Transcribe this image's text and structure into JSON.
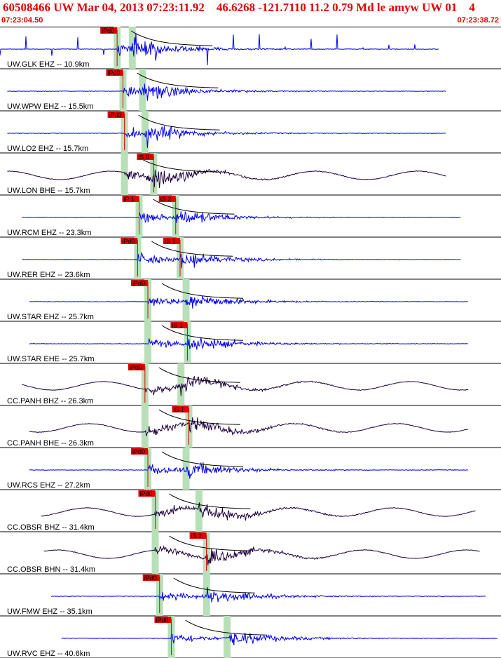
{
  "header": {
    "title": "60508466 UW Mar 04, 2013 07:23:11.92    46.6268 -121.7110 11.2 0.79 Md le amyw UW 01    4",
    "time_start": "07:23:04.50",
    "time_end": "07:23:38.72"
  },
  "colors": {
    "header_text": "#e00000",
    "ehz_trace": "#0000ee",
    "broadband_trace": "#200040",
    "pick_box": "#e00000",
    "pick_window": "#b8e0b8",
    "coda_curve": "#000000"
  },
  "chart_data": {
    "type": "line",
    "title": "60508466 UW Mar 04, 2013 07:23:11.92    46.6268 -121.7110 11.2 0.79 Md le amyw UW 01    4",
    "x_start": "07:23:04.50",
    "x_end": "07:23:38.72",
    "x_range_seconds": [
      0,
      34.22
    ],
    "grid": false,
    "legend": "none",
    "origin_time_offset": 7.42,
    "traces": [
      {
        "label": "UW.GLK EHZ -- 10.9km",
        "channel": "EHZ",
        "distance_km": 10.9,
        "p_pick": {
          "label": "iPd0",
          "t": 8.0
        },
        "s_pick": null,
        "data_start": 0.0,
        "data_end": 30.0
      },
      {
        "label": "UW.WPW EHZ -- 15.5km",
        "channel": "EHZ",
        "distance_km": 15.5,
        "p_pick": {
          "label": "iPd0",
          "t": 8.4
        },
        "s_pick": null,
        "data_start": 0.5,
        "data_end": 30.5
      },
      {
        "label": "UW.LO2 EHZ -- 15.7km",
        "channel": "EHZ",
        "distance_km": 15.7,
        "p_pick": {
          "label": "iPd0",
          "t": 8.5
        },
        "s_pick": null,
        "data_start": 0.5,
        "data_end": 30.5
      },
      {
        "label": "UW.LON BHE -- 15.7km",
        "channel": "BHE",
        "distance_km": 15.7,
        "p_pick": null,
        "s_pick": {
          "label": "iS 0",
          "t": 10.5
        },
        "data_start": 0.5,
        "data_end": 30.5
      },
      {
        "label": "UW.RCM EHZ -- 23.3km",
        "channel": "EHZ",
        "distance_km": 23.3,
        "p_pick": {
          "label": "iP 1",
          "t": 9.5
        },
        "s_pick": {
          "label": "iS 2",
          "t": 12.0
        },
        "data_start": 1.5,
        "data_end": 31.5
      },
      {
        "label": "UW.RER EHZ -- 23.6km",
        "channel": "EHZ",
        "distance_km": 23.6,
        "p_pick": {
          "label": "iPd0",
          "t": 9.4
        },
        "s_pick": {
          "label": "iS 1",
          "t": 12.3
        },
        "data_start": 1.5,
        "data_end": 31.5
      },
      {
        "label": "UW.STAR EHZ -- 25.7km",
        "channel": "EHZ",
        "distance_km": 25.7,
        "p_pick": {
          "label": "iPd0",
          "t": 10.1
        },
        "s_pick": null,
        "data_start": 2.0,
        "data_end": 32.0
      },
      {
        "label": "UW.STAR EHE -- 25.7km",
        "channel": "EHE",
        "distance_km": 25.7,
        "p_pick": null,
        "s_pick": {
          "label": "iS 1",
          "t": 12.8
        },
        "data_start": 2.0,
        "data_end": 32.0
      },
      {
        "label": "CC.PANH BHZ -- 26.3km",
        "channel": "BHZ",
        "distance_km": 26.3,
        "p_pick": {
          "label": "iPd0",
          "t": 9.9
        },
        "s_pick": null,
        "data_start": 1.5,
        "data_end": 32.0
      },
      {
        "label": "CC.PANH BHE -- 26.3km",
        "channel": "BHE",
        "distance_km": 26.3,
        "p_pick": null,
        "s_pick": {
          "label": "iS 1",
          "t": 12.9
        },
        "data_start": 2.0,
        "data_end": 32.0
      },
      {
        "label": "UW.RCS EHZ -- 27.2km",
        "channel": "EHZ",
        "distance_km": 27.2,
        "p_pick": {
          "label": "iPd0",
          "t": 10.1
        },
        "s_pick": null,
        "data_start": 2.0,
        "data_end": 32.0
      },
      {
        "label": "CC.OBSR BHZ -- 31.4km",
        "channel": "BHZ",
        "distance_km": 31.4,
        "p_pick": {
          "label": "iPd0",
          "t": 10.6
        },
        "s_pick": null,
        "data_start": 2.8,
        "data_end": 32.5
      },
      {
        "label": "CC.OBSR BHN -- 31.4km",
        "channel": "BHN",
        "distance_km": 31.4,
        "p_pick": null,
        "s_pick": {
          "label": "iS 1",
          "t": 14.1
        },
        "data_start": 3.0,
        "data_end": 32.8
      },
      {
        "label": "UW.FMW EHZ -- 35.1km",
        "channel": "EHZ",
        "distance_km": 35.1,
        "p_pick": {
          "label": "iPd0",
          "t": 10.9
        },
        "s_pick": null,
        "data_start": 3.5,
        "data_end": 33.2
      },
      {
        "label": "UW.RVC EHZ -- 40.6km",
        "channel": "EHZ",
        "distance_km": 40.6,
        "p_pick": {
          "label": "iPd0",
          "t": 11.7
        },
        "s_pick": null,
        "data_start": 4.2,
        "data_end": 34.0
      }
    ]
  }
}
